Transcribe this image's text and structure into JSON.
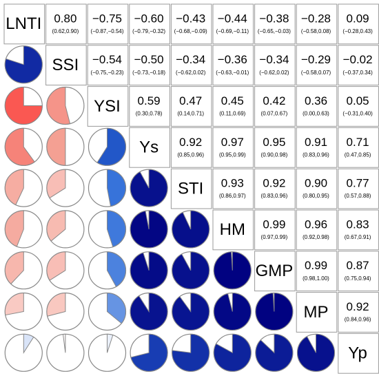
{
  "chart_data": {
    "type": "correlation_matrix",
    "variables": [
      "LNTI",
      "SSI",
      "YSI",
      "Ys",
      "STI",
      "HM",
      "GMP",
      "MP",
      "Yp"
    ],
    "values": [
      [
        0.8,
        -0.75,
        -0.6,
        -0.43,
        -0.44,
        -0.38,
        -0.28,
        0.09
      ],
      [
        -0.54,
        -0.5,
        -0.34,
        -0.36,
        -0.34,
        -0.29,
        -0.02
      ],
      [
        0.59,
        0.47,
        0.45,
        0.42,
        0.36,
        0.05
      ],
      [
        0.92,
        0.97,
        0.95,
        0.91,
        0.71
      ],
      [
        0.93,
        0.92,
        0.9,
        0.77
      ],
      [
        0.99,
        0.96,
        0.83
      ],
      [
        0.99,
        0.87
      ],
      [
        0.92
      ]
    ],
    "value_labels": [
      [
        "0.80",
        "−0.75",
        "−0.60",
        "−0.43",
        "−0.44",
        "−0.38",
        "−0.28",
        "0.09"
      ],
      [
        "−0.54",
        "−0.50",
        "−0.34",
        "−0.36",
        "−0.34",
        "−0.29",
        "−0.02"
      ],
      [
        "0.59",
        "0.47",
        "0.45",
        "0.42",
        "0.36",
        "0.05"
      ],
      [
        "0.92",
        "0.97",
        "0.95",
        "0.91",
        "0.71"
      ],
      [
        "0.93",
        "0.92",
        "0.90",
        "0.77"
      ],
      [
        "0.99",
        "0.96",
        "0.83"
      ],
      [
        "0.99",
        "0.87"
      ],
      [
        "0.92"
      ]
    ],
    "ci_labels": [
      [
        "(0.62,0.90)",
        "(−0.87,−0.54)",
        "(−0.79,−0.32)",
        "(−0.68,−0.09)",
        "(−0.69,−0.11)",
        "(−0.65,−0.03)",
        "(−0.58,0.08)",
        "(−0.28,0.43)"
      ],
      [
        "(−0.75,−0.23)",
        "(−0.73,−0.18)",
        "(−0.62,0.02)",
        "(−0.63,−0.01)",
        "(−0.62,0.02)",
        "(−0.58,0.07)",
        "(−0.37,0.34)"
      ],
      [
        "(0.30,0.78)",
        "(0.14,0.71)",
        "(0.11,0.69)",
        "(0.07,0.67)",
        "(0.00,0.63)",
        "(−0.31,0.40)"
      ],
      [
        "(0.85,0.96)",
        "(0.95,0.99)",
        "(0.90,0.98)",
        "(0.83,0.96)",
        "(0.47,0.85)"
      ],
      [
        "(0.86,0.97)",
        "(0.83,0.96)",
        "(0.80,0.95)",
        "(0.57,0.88)"
      ],
      [
        "(0.97,0.99)",
        "(0.92,0.98)",
        "(0.67,0.91)"
      ],
      [
        "(0.98,1.00)",
        "(0.75,0.94)"
      ],
      [
        "(0.84,0.96)"
      ]
    ],
    "positive_colors": [
      "#ffffff",
      "#2a6ad8",
      "#00007f"
    ],
    "negative_colors": [
      "#ffffff",
      "#f4a093",
      "#ff1010"
    ]
  }
}
